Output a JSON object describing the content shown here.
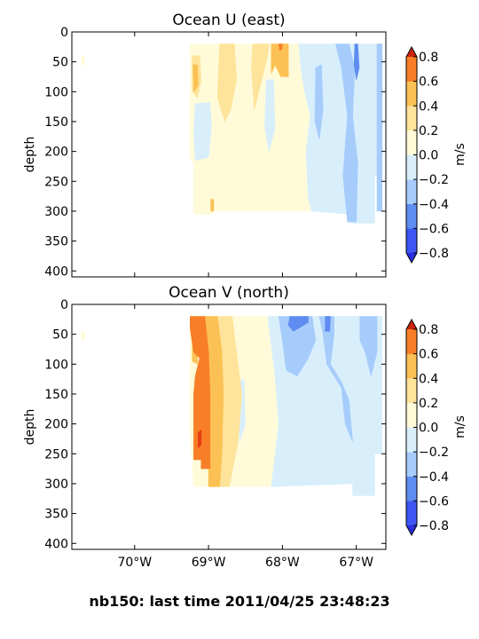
{
  "figure": {
    "suptitle": "nb150: last time 2011/04/25 23:48:23"
  },
  "colors": {
    "levels": [
      -0.8,
      -0.6,
      -0.4,
      -0.2,
      0.0,
      0.2,
      0.4,
      0.6,
      0.8
    ],
    "fills": [
      "#3d55f2",
      "#5f8cf0",
      "#a6ccfb",
      "#d8effb",
      "#fffbd9",
      "#fee39a",
      "#fcc154",
      "#f87f27",
      "#e53c13"
    ],
    "under": "#2a2fe0",
    "over": "#c82310"
  },
  "chart_data": [
    {
      "type": "contourf",
      "title": "Ocean U (east)",
      "ylabel": "depth",
      "xlabel": "",
      "y_inverted": true,
      "ylim": [
        410,
        0
      ],
      "xlim": [
        -70.85,
        -66.6
      ],
      "yticks": [
        0,
        50,
        100,
        150,
        200,
        250,
        300,
        350,
        400
      ],
      "xticks": [
        -70,
        -69,
        -68,
        -67
      ],
      "xtick_labels": [],
      "colorbar": {
        "label": "m/s",
        "ticks": [
          -0.8,
          -0.6,
          -0.4,
          -0.2,
          0.0,
          0.2,
          0.4,
          0.6,
          0.8
        ],
        "tick_labels": [
          "−0.8",
          "−0.6",
          "−0.4",
          "−0.2",
          "0.0",
          "0.2",
          "0.4",
          "0.6",
          "0.8"
        ]
      },
      "regions": [
        {
          "color": "#fffbd9",
          "pts": [
            [
              -69.25,
              20
            ],
            [
              -66.65,
              20
            ],
            [
              -66.65,
              240
            ],
            [
              -66.75,
              240
            ],
            [
              -66.75,
              320
            ],
            [
              -67.05,
              320
            ],
            [
              -67.05,
              300
            ],
            [
              -68.95,
              300
            ],
            [
              -68.95,
              305
            ],
            [
              -69.2,
              305
            ],
            [
              -69.2,
              220
            ],
            [
              -69.25,
              210
            ]
          ]
        },
        {
          "color": "#fffbd9",
          "pts": [
            [
              -70.72,
              40
            ],
            [
              -70.68,
              40
            ],
            [
              -70.68,
              55
            ],
            [
              -70.72,
              55
            ]
          ]
        },
        {
          "color": "#d8effb",
          "pts": [
            [
              -67.78,
              20
            ],
            [
              -66.65,
              20
            ],
            [
              -66.65,
              240
            ],
            [
              -66.75,
              240
            ],
            [
              -66.75,
              320
            ],
            [
              -67.05,
              320
            ],
            [
              -67.1,
              305
            ],
            [
              -67.6,
              300
            ],
            [
              -67.65,
              280
            ],
            [
              -67.68,
              200
            ],
            [
              -67.62,
              140
            ],
            [
              -67.7,
              100
            ],
            [
              -67.75,
              60
            ]
          ]
        },
        {
          "color": "#d8effb",
          "pts": [
            [
              -69.18,
              120
            ],
            [
              -68.98,
              118
            ],
            [
              -68.96,
              160
            ],
            [
              -69.0,
              210
            ],
            [
              -69.18,
              215
            ],
            [
              -69.2,
              170
            ]
          ]
        },
        {
          "color": "#d8effb",
          "pts": [
            [
              -68.22,
              80
            ],
            [
              -68.12,
              80
            ],
            [
              -68.1,
              160
            ],
            [
              -68.18,
              200
            ],
            [
              -68.24,
              160
            ]
          ]
        },
        {
          "color": "#a6ccfb",
          "pts": [
            [
              -67.28,
              20
            ],
            [
              -67.1,
              20
            ],
            [
              -67.02,
              60
            ],
            [
              -67.05,
              140
            ],
            [
              -66.98,
              220
            ],
            [
              -67.0,
              318
            ],
            [
              -67.12,
              318
            ],
            [
              -67.18,
              240
            ],
            [
              -67.12,
              140
            ],
            [
              -67.2,
              60
            ]
          ]
        },
        {
          "color": "#a6ccfb",
          "pts": [
            [
              -67.55,
              60
            ],
            [
              -67.47,
              55
            ],
            [
              -67.45,
              130
            ],
            [
              -67.5,
              180
            ],
            [
              -67.56,
              150
            ]
          ]
        },
        {
          "color": "#a6ccfb",
          "pts": [
            [
              -66.72,
              20
            ],
            [
              -66.65,
              20
            ],
            [
              -66.65,
              300
            ],
            [
              -66.72,
              300
            ]
          ]
        },
        {
          "color": "#5f8cf0",
          "pts": [
            [
              -67.02,
              20
            ],
            [
              -66.98,
              20
            ],
            [
              -66.96,
              60
            ],
            [
              -67.0,
              80
            ],
            [
              -67.03,
              55
            ]
          ]
        },
        {
          "color": "#fee39a",
          "pts": [
            [
              -69.22,
              40
            ],
            [
              -69.12,
              40
            ],
            [
              -69.1,
              80
            ],
            [
              -69.15,
              110
            ],
            [
              -69.22,
              100
            ]
          ]
        },
        {
          "color": "#fee39a",
          "pts": [
            [
              -68.4,
              20
            ],
            [
              -68.18,
              20
            ],
            [
              -68.2,
              40
            ],
            [
              -68.38,
              130
            ],
            [
              -68.42,
              60
            ]
          ]
        },
        {
          "color": "#fee39a",
          "pts": [
            [
              -68.85,
              20
            ],
            [
              -68.65,
              20
            ],
            [
              -68.62,
              80
            ],
            [
              -68.7,
              130
            ],
            [
              -68.78,
              150
            ],
            [
              -68.88,
              110
            ]
          ]
        },
        {
          "color": "#fcc154",
          "pts": [
            [
              -68.15,
              20
            ],
            [
              -67.92,
              20
            ],
            [
              -67.92,
              75
            ],
            [
              -68.02,
              75
            ],
            [
              -68.1,
              55
            ],
            [
              -68.15,
              70
            ]
          ]
        },
        {
          "color": "#fcc154",
          "pts": [
            [
              -69.21,
              55
            ],
            [
              -69.15,
              55
            ],
            [
              -69.14,
              90
            ],
            [
              -69.2,
              100
            ]
          ]
        },
        {
          "color": "#fcc154",
          "pts": [
            [
              -68.97,
              280
            ],
            [
              -68.93,
              280
            ],
            [
              -68.93,
              300
            ],
            [
              -68.97,
              300
            ]
          ]
        },
        {
          "color": "#f87f27",
          "pts": [
            [
              -68.05,
              20
            ],
            [
              -68.0,
              20
            ],
            [
              -68.01,
              30
            ],
            [
              -68.04,
              30
            ]
          ]
        }
      ]
    },
    {
      "type": "contourf",
      "title": "Ocean V (north)",
      "ylabel": "depth",
      "xlabel": "",
      "y_inverted": true,
      "ylim": [
        410,
        0
      ],
      "xlim": [
        -70.85,
        -66.6
      ],
      "yticks": [
        0,
        50,
        100,
        150,
        200,
        250,
        300,
        350,
        400
      ],
      "xticks": [
        -70,
        -69,
        -68,
        -67
      ],
      "xtick_labels": [
        "70°W",
        "69°W",
        "68°W",
        "67°W"
      ],
      "colorbar": {
        "label": "m/s",
        "ticks": [
          -0.8,
          -0.6,
          -0.4,
          -0.2,
          0.0,
          0.2,
          0.4,
          0.6,
          0.8
        ],
        "tick_labels": [
          "−0.8",
          "−0.6",
          "−0.4",
          "−0.2",
          "0.0",
          "0.2",
          "0.4",
          "0.6",
          "0.8"
        ]
      },
      "regions": [
        {
          "color": "#fffbd9",
          "pts": [
            [
              -69.25,
              20
            ],
            [
              -68.0,
              20
            ],
            [
              -68.1,
              120
            ],
            [
              -68.05,
              200
            ],
            [
              -68.15,
              305
            ],
            [
              -69.2,
              305
            ],
            [
              -69.25,
              210
            ]
          ]
        },
        {
          "color": "#fffbd9",
          "pts": [
            [
              -70.72,
              45
            ],
            [
              -70.68,
              45
            ],
            [
              -70.68,
              60
            ],
            [
              -70.72,
              60
            ]
          ]
        },
        {
          "color": "#d8effb",
          "pts": [
            [
              -68.2,
              20
            ],
            [
              -66.65,
              20
            ],
            [
              -66.65,
              250
            ],
            [
              -66.75,
              250
            ],
            [
              -66.75,
              320
            ],
            [
              -67.05,
              320
            ],
            [
              -67.05,
              300
            ],
            [
              -68.15,
              305
            ],
            [
              -68.05,
              200
            ],
            [
              -68.1,
              120
            ]
          ]
        },
        {
          "color": "#d8effb",
          "pts": [
            [
              -68.6,
              130
            ],
            [
              -68.52,
              125
            ],
            [
              -68.5,
              200
            ],
            [
              -68.58,
              230
            ]
          ]
        },
        {
          "color": "#a6ccfb",
          "pts": [
            [
              -68.05,
              20
            ],
            [
              -67.6,
              20
            ],
            [
              -67.55,
              60
            ],
            [
              -67.65,
              90
            ],
            [
              -67.8,
              120
            ],
            [
              -67.95,
              110
            ],
            [
              -68.0,
              60
            ]
          ]
        },
        {
          "color": "#a6ccfb",
          "pts": [
            [
              -67.5,
              20
            ],
            [
              -67.3,
              20
            ],
            [
              -67.3,
              50
            ],
            [
              -67.35,
              100
            ],
            [
              -67.2,
              130
            ],
            [
              -67.1,
              160
            ],
            [
              -67.05,
              230
            ],
            [
              -67.15,
              200
            ],
            [
              -67.2,
              140
            ],
            [
              -67.4,
              100
            ],
            [
              -67.45,
              50
            ]
          ]
        },
        {
          "color": "#a6ccfb",
          "pts": [
            [
              -66.95,
              20
            ],
            [
              -66.72,
              20
            ],
            [
              -66.72,
              80
            ],
            [
              -66.8,
              120
            ],
            [
              -66.88,
              80
            ],
            [
              -66.95,
              60
            ]
          ]
        },
        {
          "color": "#5f8cf0",
          "pts": [
            [
              -67.9,
              20
            ],
            [
              -67.65,
              20
            ],
            [
              -67.65,
              30
            ],
            [
              -67.85,
              45
            ],
            [
              -67.92,
              35
            ]
          ]
        },
        {
          "color": "#5f8cf0",
          "pts": [
            [
              -67.42,
              20
            ],
            [
              -67.35,
              20
            ],
            [
              -67.36,
              45
            ],
            [
              -67.42,
              45
            ]
          ]
        },
        {
          "color": "#fee39a",
          "pts": [
            [
              -68.95,
              20
            ],
            [
              -68.68,
              20
            ],
            [
              -68.62,
              80
            ],
            [
              -68.55,
              150
            ],
            [
              -68.6,
              230
            ],
            [
              -68.72,
              305
            ],
            [
              -68.95,
              305
            ]
          ]
        },
        {
          "color": "#fcc154",
          "pts": [
            [
              -69.12,
              20
            ],
            [
              -68.88,
              20
            ],
            [
              -68.82,
              80
            ],
            [
              -68.8,
              150
            ],
            [
              -68.82,
              250
            ],
            [
              -68.85,
              305
            ],
            [
              -69.0,
              305
            ],
            [
              -69.0,
              250
            ],
            [
              -69.1,
              150
            ]
          ]
        },
        {
          "color": "#fcc154",
          "pts": [
            [
              -69.22,
              40
            ],
            [
              -69.15,
              40
            ],
            [
              -69.15,
              100
            ],
            [
              -69.22,
              95
            ]
          ]
        },
        {
          "color": "#f87f27",
          "pts": [
            [
              -69.25,
              20
            ],
            [
              -69.05,
              20
            ],
            [
              -69.0,
              80
            ],
            [
              -68.98,
              150
            ],
            [
              -68.98,
              275
            ],
            [
              -69.1,
              275
            ],
            [
              -69.1,
              260
            ],
            [
              -69.2,
              260
            ],
            [
              -69.2,
              150
            ],
            [
              -69.18,
              120
            ],
            [
              -69.12,
              90
            ],
            [
              -69.2,
              80
            ],
            [
              -69.25,
              40
            ]
          ]
        },
        {
          "color": "#e53c13",
          "pts": [
            [
              -69.14,
              215
            ],
            [
              -69.1,
              210
            ],
            [
              -69.1,
              235
            ],
            [
              -69.14,
              240
            ]
          ]
        }
      ]
    }
  ]
}
